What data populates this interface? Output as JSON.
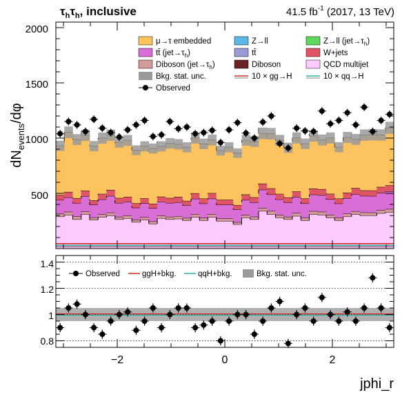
{
  "header": {
    "channel": "τ",
    "channel_sub": "h",
    "channel_join": "τ",
    "channel_sub2": "h",
    "category": ", inclusive",
    "lumi_pre": "41.5 fb",
    "lumi_exp": "-1",
    "lumi_post": " (2017, 13 TeV)"
  },
  "axes": {
    "ylabel": "dN",
    "ylabel_sub": "events",
    "ylabel_post": "/dφ",
    "xlabel": "jphi_r",
    "x_ticks": [
      "−2",
      "0",
      "2"
    ],
    "y_ticks_main": [
      "500",
      "1000",
      "1500",
      "2000"
    ],
    "y_ticks_ratio": [
      "0.8",
      "1",
      "1.2",
      "1.4"
    ]
  },
  "legend_main": {
    "emb": "μ→τ embedded",
    "zll": "Z→ll",
    "zj": "Z→ll (jet→τ",
    "zj_sub": "h",
    "zj_post": ")",
    "ttj": "tt̄ (jet→τ",
    "ttj_sub": "h",
    "ttj_post": ")",
    "tt": "tt̄",
    "wj": "W+jets",
    "vvj": "Diboson (jet→τ",
    "vvj_sub": "h",
    "vvj_post": ")",
    "vv": "Diboson",
    "qcd": "QCD multijet",
    "unc": "Bkg. stat. unc.",
    "ggh": "10 × gg→H",
    "qqh": "10 × qq→H",
    "obs": "Observed"
  },
  "legend_ratio": {
    "obs": "Observed",
    "ggh": "ggH+bkg.",
    "qqh": "qqH+bkg.",
    "unc": "Bkg. stat. unc."
  },
  "colors": {
    "emb": "#fdc35f",
    "ttj": "#d96fd6",
    "vvj": "#d49a9a",
    "unc": "#9a9a9a",
    "zll": "#5bb9e3",
    "tt": "#9b9bd5",
    "vv": "#6b2222",
    "zj": "#5cd85c",
    "wj": "#e05566",
    "qcd": "#fdcafd",
    "ggh": "#d62728",
    "qqh": "#2ab3a0"
  },
  "chart_data": {
    "type": "histogram",
    "xlim": [
      -3.14159,
      3.14159
    ],
    "ylim": [
      0,
      2050
    ],
    "ratio_ylim": [
      0.75,
      1.45
    ],
    "bins": 40,
    "qcd": [
      290,
      305,
      265,
      310,
      260,
      285,
      300,
      265,
      275,
      240,
      260,
      225,
      275,
      265,
      270,
      255,
      285,
      255,
      285,
      250,
      250,
      220,
      280,
      265,
      340,
      310,
      280,
      265,
      295,
      255,
      310,
      305,
      280,
      255,
      290,
      310,
      300,
      300,
      320,
      330
    ],
    "other": [
      25,
      28,
      27,
      25,
      22,
      25,
      26,
      23,
      24,
      20,
      25,
      21,
      25,
      23,
      24,
      22,
      26,
      23,
      27,
      22,
      22,
      19,
      25,
      24,
      28,
      30,
      25,
      23,
      27,
      24,
      29,
      28,
      26,
      23,
      26,
      28,
      27,
      26,
      28,
      28
    ],
    "ttj": [
      125,
      130,
      120,
      140,
      115,
      135,
      150,
      125,
      125,
      110,
      125,
      120,
      125,
      125,
      125,
      115,
      140,
      130,
      140,
      125,
      125,
      115,
      135,
      130,
      165,
      150,
      140,
      130,
      145,
      130,
      150,
      150,
      140,
      130,
      140,
      155,
      150,
      150,
      155,
      160
    ],
    "wj": [
      45,
      50,
      45,
      50,
      40,
      50,
      55,
      45,
      45,
      40,
      45,
      40,
      45,
      45,
      50,
      40,
      50,
      45,
      50,
      45,
      45,
      40,
      50,
      45,
      55,
      55,
      50,
      45,
      50,
      45,
      55,
      55,
      50,
      45,
      50,
      55,
      50,
      50,
      55,
      55
    ],
    "emb": [
      445,
      540,
      530,
      500,
      490,
      505,
      495,
      505,
      510,
      480,
      470,
      500,
      455,
      495,
      475,
      485,
      500,
      495,
      480,
      445,
      475,
      470,
      490,
      505,
      455,
      495,
      485,
      450,
      485,
      495,
      475,
      445,
      505,
      465,
      500,
      440,
      500,
      505,
      470,
      520
    ],
    "obs": [
      1040,
      1150,
      1120,
      1060,
      1170,
      1090,
      1050,
      1010,
      1075,
      1120,
      1160,
      1015,
      1030,
      1150,
      1085,
      1100,
      1040,
      1050,
      1070,
      960,
      1075,
      1140,
      1045,
      1000,
      1145,
      1200,
      950,
      910,
      1090,
      1065,
      1060,
      1245,
      1130,
      1160,
      1230,
      1120,
      1280,
      1060,
      1160,
      1215
    ],
    "obs_err": [
      35,
      35,
      35,
      35,
      35,
      35,
      35,
      35,
      35,
      35,
      35,
      35,
      35,
      35,
      35,
      35,
      35,
      35,
      35,
      35,
      35,
      35,
      35,
      35,
      35,
      35,
      35,
      35,
      35,
      35,
      35,
      35,
      35,
      35,
      35,
      35,
      35,
      35,
      35,
      35
    ],
    "ratio_obs": [
      0.9,
      1.05,
      1.08,
      1.0,
      0.9,
      0.85,
      0.95,
      1.0,
      1.02,
      0.88,
      0.95,
      1.05,
      0.9,
      1.0,
      1.05,
      1.05,
      0.9,
      0.92,
      0.95,
      0.8,
      0.95,
      1.0,
      1.0,
      0.85,
      0.95,
      1.05,
      1.1,
      0.78,
      1.0,
      1.05,
      0.95,
      1.13,
      1.0,
      0.95,
      1.02,
      0.95,
      1.05,
      1.28,
      1.05,
      0.9
    ],
    "ratio_err": [
      0.035,
      0.035,
      0.035,
      0.035,
      0.035,
      0.035,
      0.035,
      0.035,
      0.035,
      0.035,
      0.035,
      0.035,
      0.035,
      0.035,
      0.035,
      0.035,
      0.035,
      0.035,
      0.035,
      0.035,
      0.035,
      0.035,
      0.035,
      0.035,
      0.035,
      0.035,
      0.035,
      0.035,
      0.035,
      0.035,
      0.035,
      0.035,
      0.035,
      0.035,
      0.035,
      0.035,
      0.035,
      0.035,
      0.035,
      0.035
    ],
    "bkg_unc_rel": [
      0.05,
      0.05,
      0.05,
      0.05,
      0.05,
      0.05,
      0.05,
      0.05,
      0.05,
      0.05,
      0.05,
      0.05,
      0.05,
      0.05,
      0.05,
      0.05,
      0.05,
      0.05,
      0.05,
      0.05,
      0.05,
      0.05,
      0.05,
      0.05,
      0.05,
      0.05,
      0.05,
      0.05,
      0.05,
      0.05,
      0.05,
      0.05,
      0.05,
      0.05,
      0.05,
      0.05,
      0.05,
      0.05,
      0.05,
      0.05
    ],
    "signal_ggh": 45,
    "signal_qqh": 30
  }
}
